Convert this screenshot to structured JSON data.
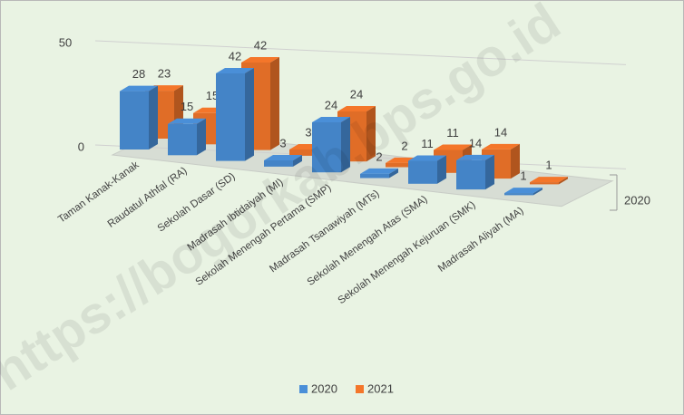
{
  "chart_data": {
    "type": "bar3d",
    "categories": [
      "Taman Kanak-Kanak",
      "Raudatul Athfal (RA)",
      "Sekolah Dasar (SD)",
      "Madrasah Ibtidaiyah (MI)",
      "Sekolah Menengah Pertama (SMP)",
      "Madrasah Tsanawiyah (MTs)",
      "Sekolah Menengah Atas (SMA)",
      "Sekolah Menengah Kejuruan (SMK)",
      "Madrasah Aliyah (MA)"
    ],
    "series": [
      {
        "name": "2020",
        "color": "#4a8fd8",
        "values": [
          28,
          15,
          42,
          3,
          24,
          2,
          11,
          14,
          1
        ]
      },
      {
        "name": "2021",
        "color": "#f4762a",
        "values": [
          23,
          15,
          42,
          3,
          24,
          2,
          11,
          14,
          1
        ]
      }
    ],
    "depth_label": "2020",
    "ylim": [
      0,
      50
    ],
    "yticks": [
      0,
      50
    ],
    "grid": true,
    "legend": "bottom",
    "watermark": "https://bogorkab.bps.go.id"
  }
}
